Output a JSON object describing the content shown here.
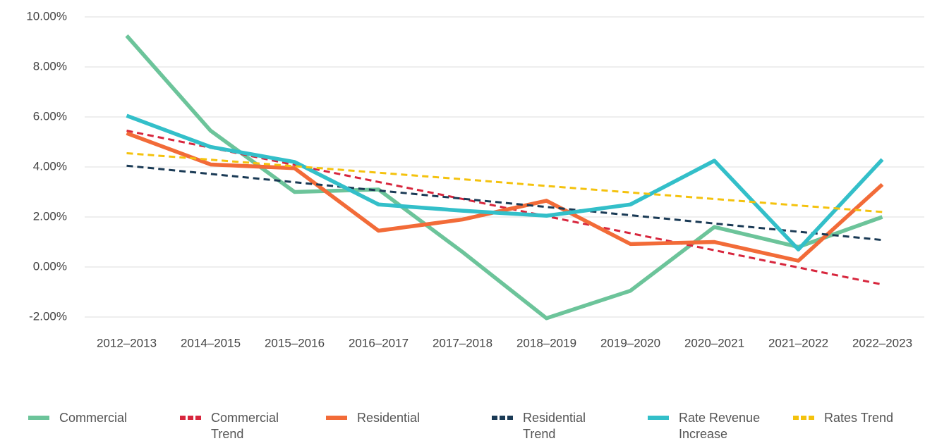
{
  "chart_data": {
    "type": "line",
    "categories": [
      "2012–2013",
      "2014–2015",
      "2015–2016",
      "2016–2017",
      "2017–2018",
      "2018–2019",
      "2019–2020",
      "2020–2021",
      "2021–2022",
      "2022–2023"
    ],
    "series": [
      {
        "name": "Commercial",
        "color": "#6cc49a",
        "dashed": false,
        "values": [
          9.25,
          5.45,
          3.0,
          3.1,
          0.6,
          -2.05,
          -0.95,
          1.6,
          0.8,
          2.0
        ]
      },
      {
        "name": "Commercial Trend",
        "color": "#d7263d",
        "dashed": true,
        "values": [
          5.45,
          4.77,
          4.08,
          3.4,
          2.72,
          2.03,
          1.35,
          0.67,
          -0.02,
          -0.7
        ]
      },
      {
        "name": "Residential",
        "color": "#f26b38",
        "dashed": false,
        "values": [
          5.35,
          4.1,
          3.95,
          1.45,
          1.9,
          2.65,
          0.92,
          1.0,
          0.25,
          3.3
        ]
      },
      {
        "name": "Residential Trend",
        "color": "#1a3a55",
        "dashed": true,
        "values": [
          4.05,
          3.72,
          3.39,
          3.06,
          2.73,
          2.4,
          2.07,
          1.74,
          1.41,
          1.08
        ]
      },
      {
        "name": "Rate Revenue Increase",
        "color": "#33bfc9",
        "dashed": false,
        "values": [
          6.05,
          4.8,
          4.2,
          2.5,
          2.25,
          2.05,
          2.5,
          4.25,
          0.7,
          4.3
        ]
      },
      {
        "name": "Rates Trend",
        "color": "#f4c20d",
        "dashed": true,
        "values": [
          4.55,
          4.29,
          4.03,
          3.77,
          3.51,
          3.24,
          2.98,
          2.72,
          2.46,
          2.2
        ]
      }
    ],
    "ylim": [
      -2,
      10
    ],
    "yticks": [
      {
        "value": -2,
        "label": "-2.00%"
      },
      {
        "value": 0,
        "label": "0.00%"
      },
      {
        "value": 2,
        "label": "2.00%"
      },
      {
        "value": 4,
        "label": "4.00%"
      },
      {
        "value": 6,
        "label": "6.00%"
      },
      {
        "value": 8,
        "label": "8.00%"
      },
      {
        "value": 10,
        "label": "10.00%"
      }
    ],
    "grid": true,
    "legend": "bottom"
  }
}
